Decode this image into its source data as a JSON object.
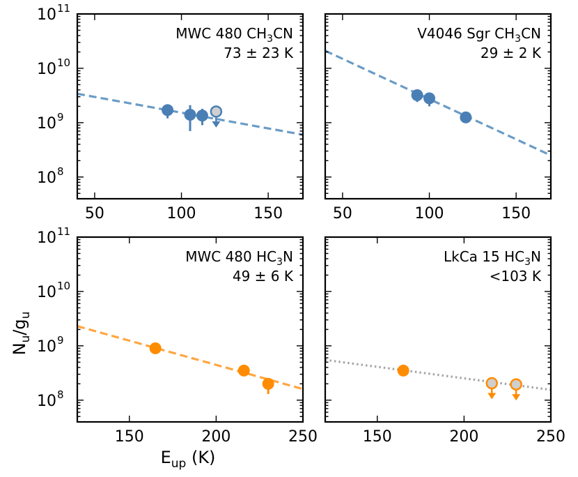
{
  "figure": {
    "ylabel": {
      "main": "N",
      "sub1": "u",
      "mid": "/g",
      "sub2": "u"
    },
    "xlabel": {
      "main": "E",
      "sub": "up",
      "tail": " (K)"
    }
  },
  "chart_data": [
    {
      "type": "scatter",
      "panel": "top-left",
      "label_line1": {
        "pre": "MWC 480 CH",
        "sub": "3",
        "post": "CN"
      },
      "label_line2": "73 ± 23 K",
      "color": "#4a7fb5",
      "fit_color": "#6a9cc6",
      "fit_style": "dashed",
      "xlim": [
        40,
        170
      ],
      "ylim_log10": [
        7.6,
        11.0
      ],
      "xticks": [
        50,
        100,
        150
      ],
      "show_xtick_labels": true,
      "show_ytick_labels": true,
      "fit": [
        [
          40,
          3400000000.0
        ],
        [
          170,
          600000000.0
        ]
      ],
      "points": [
        {
          "x": 92,
          "y": 1700000000.0,
          "err_lo": 500000000.0,
          "err_hi": 300000000.0
        },
        {
          "x": 105,
          "y": 1400000000.0,
          "err_lo": 700000000.0,
          "err_hi": 700000000.0
        },
        {
          "x": 112,
          "y": 1350000000.0,
          "err_lo": 450000000.0,
          "err_hi": 450000000.0
        }
      ],
      "upper_limits": [
        {
          "x": 120,
          "y": 1600000000.0
        }
      ]
    },
    {
      "type": "scatter",
      "panel": "top-right",
      "label_line1": {
        "pre": "V4046 Sgr CH",
        "sub": "3",
        "post": "CN"
      },
      "label_line2": "29 ± 2 K",
      "color": "#4a7fb5",
      "fit_color": "#6a9cc6",
      "fit_style": "dashed",
      "xlim": [
        40,
        170
      ],
      "ylim_log10": [
        7.6,
        11.0
      ],
      "xticks": [
        50,
        100,
        150
      ],
      "show_xtick_labels": true,
      "show_ytick_labels": false,
      "fit": [
        [
          40,
          21000000000.0
        ],
        [
          170,
          250000000.0
        ]
      ],
      "points": [
        {
          "x": 93,
          "y": 3200000000.0,
          "err_lo": 800000000.0,
          "err_hi": 500000000.0
        },
        {
          "x": 100,
          "y": 2800000000.0,
          "err_lo": 800000000.0,
          "err_hi": 500000000.0
        },
        {
          "x": 121,
          "y": 1250000000.0,
          "err_lo": 200000000.0,
          "err_hi": 200000000.0
        }
      ],
      "upper_limits": []
    },
    {
      "type": "scatter",
      "panel": "bottom-left",
      "label_line1": {
        "pre": "MWC 480 HC",
        "sub": "3",
        "post": "N"
      },
      "label_line2": "49 ± 6 K",
      "color": "#ff8c00",
      "fit_color": "#ffa640",
      "fit_style": "dashed",
      "xlim": [
        120,
        250
      ],
      "ylim_log10": [
        7.6,
        11.0
      ],
      "xticks": [
        150,
        200,
        250
      ],
      "show_xtick_labels": true,
      "show_ytick_labels": true,
      "fit": [
        [
          120,
          2300000000.0
        ],
        [
          250,
          160000000.0
        ]
      ],
      "points": [
        {
          "x": 165,
          "y": 900000000.0,
          "err_lo": 100000000.0,
          "err_hi": 100000000.0
        },
        {
          "x": 216,
          "y": 350000000.0,
          "err_lo": 5000000.0,
          "err_hi": 5000000.0
        },
        {
          "x": 230,
          "y": 200000000.0,
          "err_lo": 70000000.0,
          "err_hi": 30000000.0
        }
      ],
      "upper_limits": []
    },
    {
      "type": "scatter",
      "panel": "bottom-right",
      "label_line1": {
        "pre": "LkCa 15 HC",
        "sub": "3",
        "post": "N"
      },
      "label_line2": "<103 K",
      "color": "#ff8c00",
      "fit_color": "#a6a6a6",
      "fit_style": "dotted",
      "xlim": [
        120,
        250
      ],
      "ylim_log10": [
        7.6,
        11.0
      ],
      "xticks": [
        150,
        200,
        250
      ],
      "show_xtick_labels": true,
      "show_ytick_labels": false,
      "fit": [
        [
          120,
          550000000.0
        ],
        [
          250,
          155000000.0
        ]
      ],
      "points": [
        {
          "x": 165,
          "y": 350000000.0,
          "err_lo": 20000000.0,
          "err_hi": 20000000.0
        }
      ],
      "upper_limits": [
        {
          "x": 216,
          "y": 205000000.0
        },
        {
          "x": 230,
          "y": 195000000.0
        }
      ]
    }
  ],
  "ytick_labels": [
    {
      "exp": 8,
      "base": "10",
      "power": "8"
    },
    {
      "exp": 9,
      "base": "10",
      "power": "9"
    },
    {
      "exp": 10,
      "base": "10",
      "power": "10"
    },
    {
      "exp": 11,
      "base": "10",
      "power": "11"
    }
  ]
}
